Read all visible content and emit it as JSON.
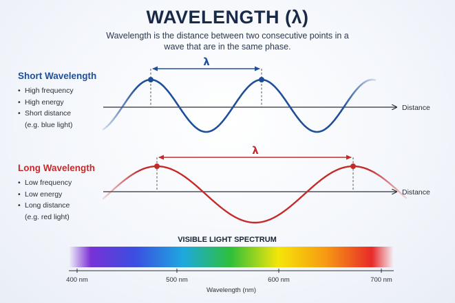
{
  "title": "WAVELENGTH (λ)",
  "subtitle": "Wavelength is the distance between two consecutive points in a wave that are in the same phase.",
  "short_wave": {
    "title": "Short Wavelength",
    "bullets": [
      "High frequency",
      "High energy",
      "Short distance"
    ],
    "note": "(e.g. blue light)",
    "lambda": "λ",
    "axis_label": "Distance",
    "color": "#1f4e98"
  },
  "long_wave": {
    "title": "Long Wavelength",
    "bullets": [
      "Low frequency",
      "Low energy",
      "Long distance"
    ],
    "note": "(e.g. red light)",
    "lambda": "λ",
    "axis_label": "Distance",
    "color": "#c42a2a"
  },
  "spectrum": {
    "title": "VISIBLE LIGHT SPECTRUM",
    "ticks": [
      "400 nm",
      "500 nm",
      "600 nm",
      "700 nm"
    ],
    "axis_label": "Wavelength (nm)",
    "colors": [
      "#7b2fd6",
      "#3a4fe0",
      "#1ea8e0",
      "#2fbf3a",
      "#f5e60a",
      "#f79a12",
      "#e8282a"
    ]
  }
}
